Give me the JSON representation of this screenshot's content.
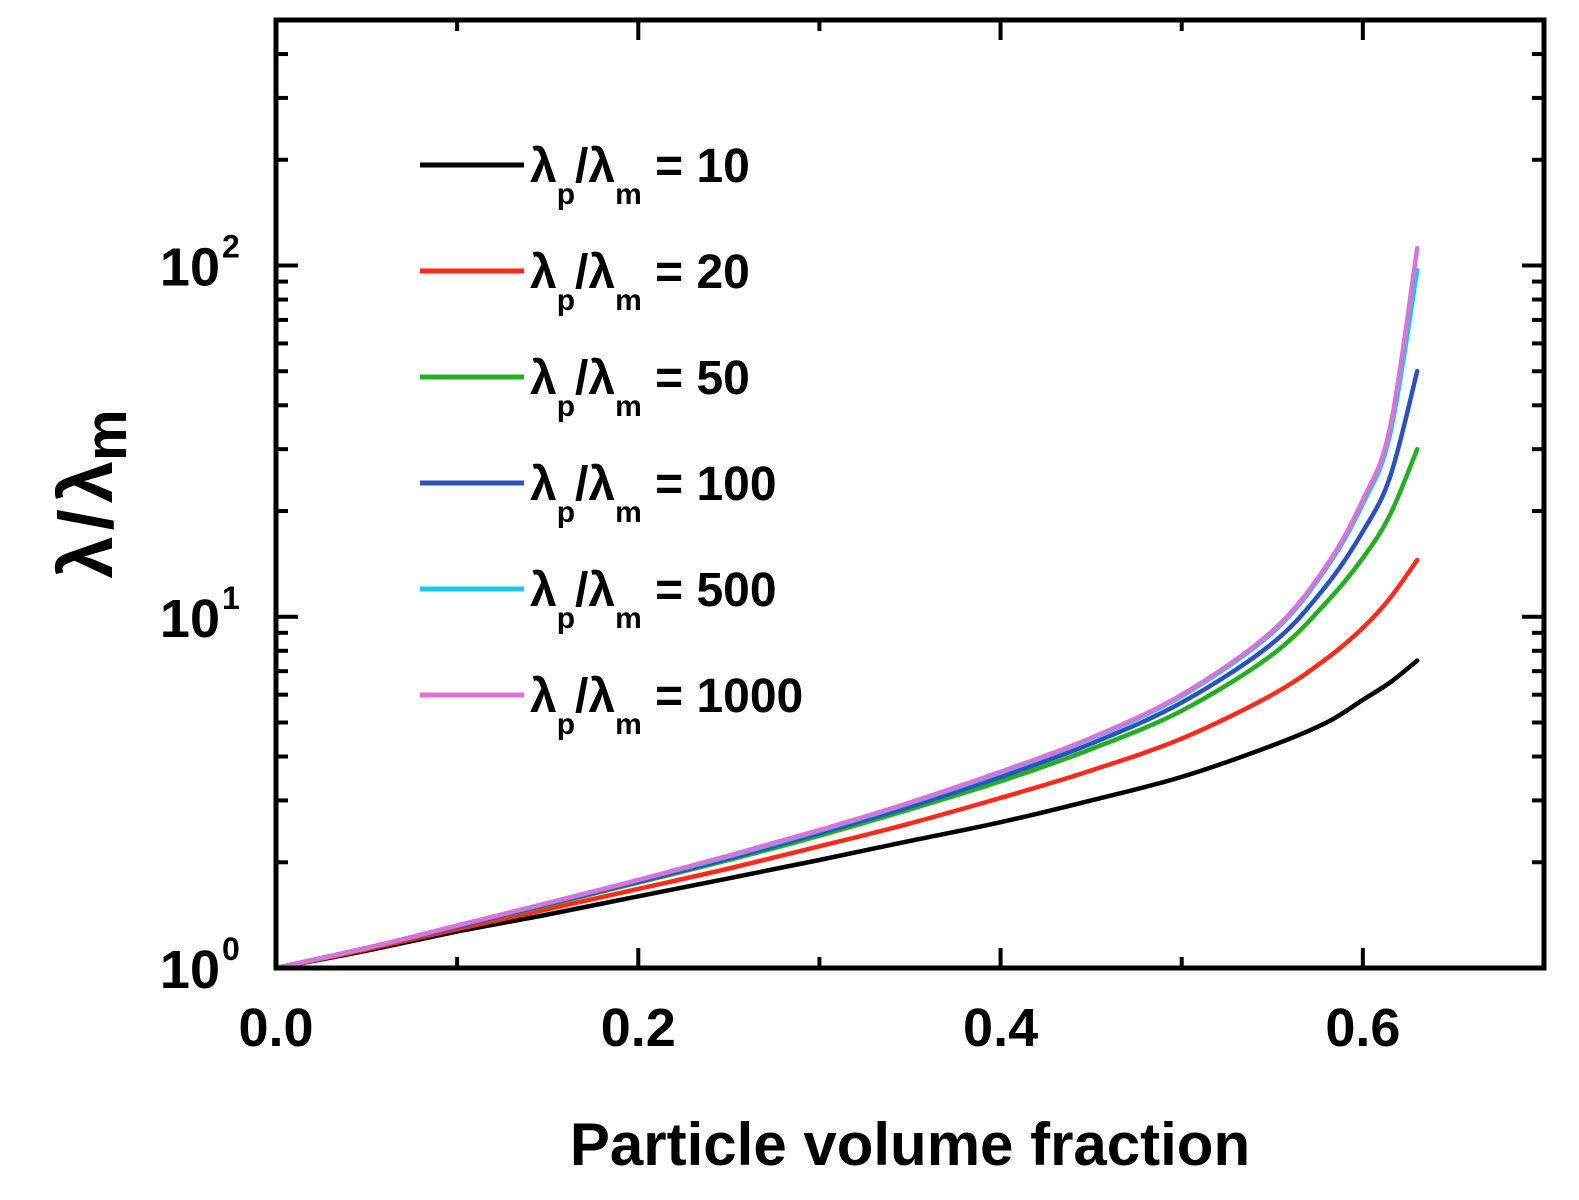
{
  "chart_data": {
    "type": "line",
    "title": "",
    "xlabel": "Particle volume fraction",
    "ylabel": {
      "symbol": "λ",
      "separator": "/",
      "ref_symbol": "λ",
      "ref_sub": "m"
    },
    "yscale": "log",
    "xlim": [
      0.0,
      0.7
    ],
    "ylim": [
      1,
      500
    ],
    "x_ticks": [
      "0.0",
      "0.2",
      "0.4",
      "0.6"
    ],
    "x_tick_values": [
      0.0,
      0.2,
      0.4,
      0.6
    ],
    "y_ticks": [
      {
        "base": "10",
        "exp": "0",
        "value": 1
      },
      {
        "base": "10",
        "exp": "1",
        "value": 10
      },
      {
        "base": "10",
        "exp": "2",
        "value": 100
      }
    ],
    "legend_position": "upper-left",
    "x": [
      0.0,
      0.05,
      0.1,
      0.15,
      0.2,
      0.25,
      0.3,
      0.35,
      0.4,
      0.45,
      0.5,
      0.55,
      0.58,
      0.6,
      0.615,
      0.63
    ],
    "series": [
      {
        "name": "λp/λm = 10",
        "ratio": "10",
        "color": "#000000",
        "values": [
          1.0,
          1.12,
          1.27,
          1.42,
          1.6,
          1.8,
          2.03,
          2.3,
          2.6,
          3.0,
          3.5,
          4.3,
          5.0,
          5.8,
          6.5,
          7.5
        ]
      },
      {
        "name": "λp/λm = 20",
        "ratio": "20",
        "color": "#ff2a1a",
        "values": [
          1.0,
          1.13,
          1.29,
          1.47,
          1.68,
          1.92,
          2.22,
          2.58,
          3.05,
          3.65,
          4.5,
          6.0,
          7.6,
          9.3,
          11.3,
          14.5
        ]
      },
      {
        "name": "λp/λm = 50",
        "ratio": "50",
        "color": "#22b022",
        "values": [
          1.0,
          1.14,
          1.31,
          1.51,
          1.75,
          2.03,
          2.38,
          2.83,
          3.4,
          4.2,
          5.4,
          7.8,
          11.0,
          14.7,
          19.5,
          30.0
        ]
      },
      {
        "name": "λp/λm = 100",
        "ratio": "100",
        "color": "#2a52be",
        "values": [
          1.0,
          1.14,
          1.31,
          1.52,
          1.76,
          2.05,
          2.42,
          2.88,
          3.5,
          4.35,
          5.7,
          8.4,
          12.3,
          17.5,
          25.0,
          50.0
        ]
      },
      {
        "name": "λp/λm = 500",
        "ratio": "500",
        "color": "#19c8e6",
        "values": [
          1.0,
          1.14,
          1.32,
          1.53,
          1.78,
          2.08,
          2.46,
          2.95,
          3.6,
          4.5,
          5.95,
          9.0,
          13.8,
          21.0,
          33.0,
          97.0
        ]
      },
      {
        "name": "λp/λm = 1000",
        "ratio": "1000",
        "color": "#d873d8",
        "values": [
          1.0,
          1.14,
          1.32,
          1.53,
          1.78,
          2.09,
          2.47,
          2.96,
          3.62,
          4.52,
          6.0,
          9.1,
          14.0,
          21.5,
          34.5,
          112.0
        ]
      }
    ]
  }
}
